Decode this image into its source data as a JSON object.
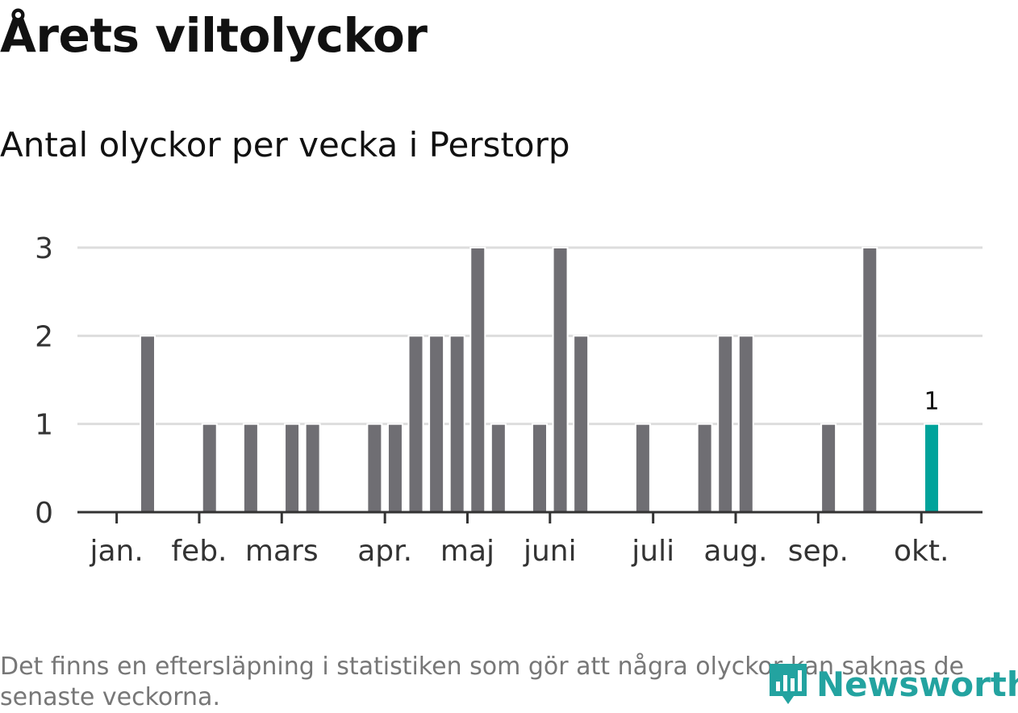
{
  "title": "Årets viltolyckor",
  "subtitle": "Antal olyckor per vecka i Perstorp",
  "footnote": "Det finns en eftersläpning i statistiken som gör att några olyckor kan saknas de senaste veckorna.",
  "brand": {
    "name": "Newsworthy",
    "icon": "newsworthy-logo-icon",
    "color": "#23a3a0"
  },
  "colors": {
    "bar": "#6f6e73",
    "highlight": "#00a39b",
    "grid": "#dddddd",
    "axis": "#333333"
  },
  "chart_data": {
    "type": "bar",
    "title": "Antal olyckor per vecka i Perstorp",
    "xlabel": "",
    "ylabel": "",
    "ylim": [
      0,
      3
    ],
    "yticks": [
      "0",
      "1",
      "2",
      "3"
    ],
    "x_range": [
      1,
      42
    ],
    "weeks": [
      3,
      6,
      8,
      10,
      11,
      14,
      15,
      16,
      17,
      18,
      19,
      20,
      22,
      23,
      24,
      27,
      30,
      31,
      32,
      36,
      38,
      41
    ],
    "values": [
      2,
      1,
      1,
      1,
      1,
      1,
      1,
      2,
      2,
      2,
      3,
      1,
      1,
      3,
      2,
      1,
      1,
      2,
      2,
      1,
      3,
      1
    ],
    "highlight_week": 41,
    "highlight_label": "1",
    "month_ticks": [
      {
        "label": "jan.",
        "week": 1.5
      },
      {
        "label": "feb.",
        "week": 5.5
      },
      {
        "label": "mars",
        "week": 9.5
      },
      {
        "label": "apr.",
        "week": 14.5
      },
      {
        "label": "maj",
        "week": 18.5
      },
      {
        "label": "juni",
        "week": 22.5
      },
      {
        "label": "juli",
        "week": 27.5
      },
      {
        "label": "aug.",
        "week": 31.5
      },
      {
        "label": "sep.",
        "week": 35.5
      },
      {
        "label": "okt.",
        "week": 40.5
      }
    ],
    "grid": true,
    "legend": "none"
  }
}
